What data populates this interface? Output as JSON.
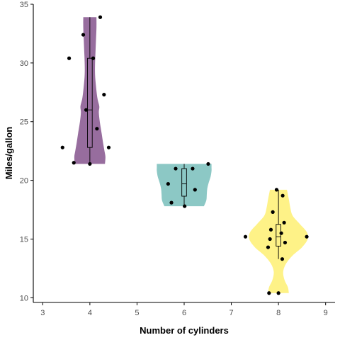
{
  "chart_data": {
    "type": "violin",
    "title": "",
    "xlabel": "Number of cylinders",
    "ylabel": "Miles/gallon",
    "xlim": [
      2.8,
      9.2
    ],
    "ylim": [
      9.6,
      35
    ],
    "xticks": [
      3,
      4,
      5,
      6,
      7,
      8,
      9
    ],
    "yticks": [
      10,
      15,
      20,
      25,
      30,
      35
    ],
    "grid": false,
    "legend": "none",
    "groups": [
      {
        "x": 4,
        "color": "#6b2f75",
        "opacity": 0.7,
        "values": [
          22.8,
          24.4,
          22.8,
          32.4,
          30.4,
          33.9,
          21.5,
          27.3,
          26.0,
          30.4,
          21.4
        ],
        "points": [
          {
            "x": 3.42,
            "y": 22.8
          },
          {
            "x": 3.56,
            "y": 30.4
          },
          {
            "x": 3.66,
            "y": 21.5
          },
          {
            "x": 3.86,
            "y": 32.4
          },
          {
            "x": 3.92,
            "y": 26.0
          },
          {
            "x": 4.0,
            "y": 21.4
          },
          {
            "x": 4.07,
            "y": 30.4
          },
          {
            "x": 4.15,
            "y": 24.4
          },
          {
            "x": 4.22,
            "y": 33.9
          },
          {
            "x": 4.3,
            "y": 27.3
          },
          {
            "x": 4.4,
            "y": 22.8
          }
        ],
        "box": {
          "q1": 22.8,
          "median": 26.0,
          "q3": 30.4,
          "min": 21.4,
          "max": 33.9
        },
        "density": [
          [
            21.4,
            0.32
          ],
          [
            22.0,
            0.33
          ],
          [
            22.5,
            0.31
          ],
          [
            23.2,
            0.28
          ],
          [
            24.0,
            0.25
          ],
          [
            25.0,
            0.21
          ],
          [
            25.8,
            0.19
          ],
          [
            26.3,
            0.2
          ],
          [
            27.0,
            0.16
          ],
          [
            28.0,
            0.13
          ],
          [
            29.0,
            0.11
          ],
          [
            30.0,
            0.11
          ],
          [
            31.0,
            0.12
          ],
          [
            32.0,
            0.13
          ],
          [
            33.0,
            0.14
          ],
          [
            33.9,
            0.14
          ]
        ]
      },
      {
        "x": 6,
        "color": "#3fa39e",
        "opacity": 0.6,
        "values": [
          21.0,
          21.0,
          21.4,
          18.1,
          19.2,
          17.8,
          19.7
        ],
        "points": [
          {
            "x": 5.66,
            "y": 19.7
          },
          {
            "x": 5.73,
            "y": 18.1
          },
          {
            "x": 5.82,
            "y": 21.0
          },
          {
            "x": 6.01,
            "y": 17.8
          },
          {
            "x": 6.18,
            "y": 21.0
          },
          {
            "x": 6.23,
            "y": 19.2
          },
          {
            "x": 6.51,
            "y": 21.4
          }
        ],
        "box": {
          "q1": 18.65,
          "median": 19.7,
          "q3": 21.0,
          "min": 17.8,
          "max": 21.4
        },
        "density": [
          [
            17.8,
            0.42
          ],
          [
            18.3,
            0.47
          ],
          [
            18.8,
            0.48
          ],
          [
            19.3,
            0.49
          ],
          [
            19.8,
            0.52
          ],
          [
            20.3,
            0.56
          ],
          [
            20.8,
            0.58
          ],
          [
            21.1,
            0.58
          ],
          [
            21.4,
            0.58
          ]
        ]
      },
      {
        "x": 8,
        "color": "#fde725",
        "opacity": 0.55,
        "values": [
          18.7,
          14.3,
          16.4,
          17.3,
          15.2,
          10.4,
          10.4,
          14.7,
          15.5,
          15.2,
          13.3,
          19.2,
          15.8,
          15.0
        ],
        "points": [
          {
            "x": 7.3,
            "y": 15.2
          },
          {
            "x": 7.78,
            "y": 14.3
          },
          {
            "x": 7.8,
            "y": 10.4
          },
          {
            "x": 7.82,
            "y": 15.0
          },
          {
            "x": 7.84,
            "y": 15.8
          },
          {
            "x": 7.88,
            "y": 17.3
          },
          {
            "x": 7.96,
            "y": 19.2
          },
          {
            "x": 8.0,
            "y": 10.4
          },
          {
            "x": 8.06,
            "y": 15.5
          },
          {
            "x": 8.08,
            "y": 13.3
          },
          {
            "x": 8.09,
            "y": 18.7
          },
          {
            "x": 8.12,
            "y": 16.4
          },
          {
            "x": 8.14,
            "y": 14.7
          },
          {
            "x": 8.6,
            "y": 15.2
          }
        ],
        "box": {
          "q1": 14.4,
          "median": 15.2,
          "q3": 16.25,
          "min": 13.3,
          "max": 19.2
        },
        "density": [
          [
            10.4,
            0.22
          ],
          [
            10.9,
            0.2
          ],
          [
            11.5,
            0.13
          ],
          [
            12.2,
            0.1
          ],
          [
            12.9,
            0.16
          ],
          [
            13.6,
            0.3
          ],
          [
            14.3,
            0.5
          ],
          [
            15.0,
            0.62
          ],
          [
            15.6,
            0.6
          ],
          [
            16.3,
            0.45
          ],
          [
            17.0,
            0.3
          ],
          [
            17.7,
            0.25
          ],
          [
            18.4,
            0.22
          ],
          [
            19.2,
            0.18
          ]
        ]
      }
    ]
  }
}
